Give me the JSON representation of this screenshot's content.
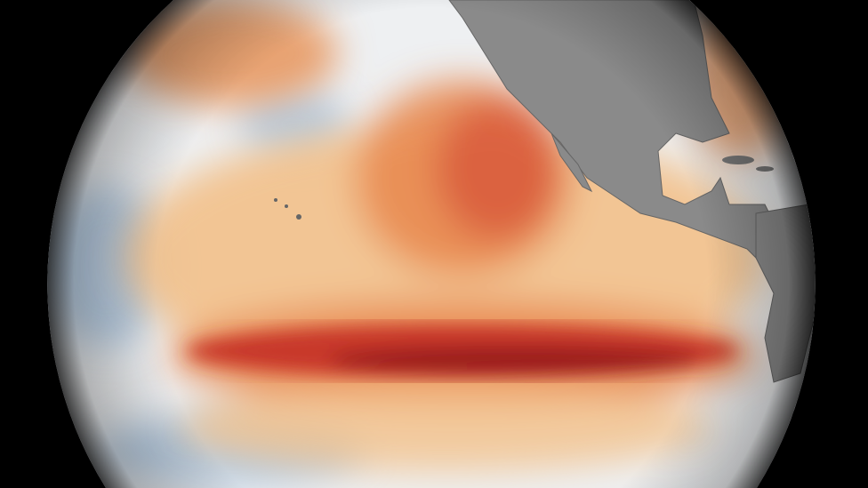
{
  "image": {
    "subject": "globe",
    "colors": {
      "background": "#000000",
      "ocean_neutral": "#eef0f2",
      "cool_anomaly": "#a9c3dd",
      "warm_light": "#f2c08a",
      "warm_mid": "#e8874e",
      "warm_strong": "#c8372a",
      "warm_extreme": "#9a1a1e",
      "land": "#8a8a8a"
    }
  }
}
